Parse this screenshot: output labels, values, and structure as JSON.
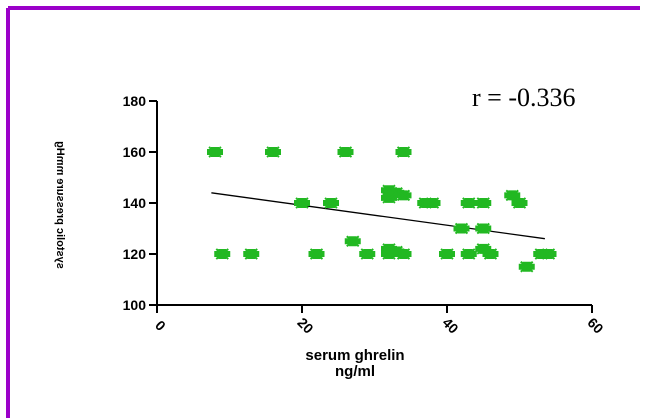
{
  "colors": {
    "border": "#9b00c9",
    "point": "#22b822",
    "axis": "#000000",
    "background": "#ffffff"
  },
  "chart_data": {
    "type": "scatter",
    "title": "",
    "xlabel": [
      "serum ghrelin",
      "ng/ml"
    ],
    "ylabel": "systolic pressure mmHg",
    "annotation": "r = -0.336",
    "xlim": [
      0,
      60
    ],
    "ylim": [
      100,
      180
    ],
    "x_ticks": [
      0,
      20,
      40,
      60
    ],
    "y_ticks": [
      100,
      120,
      140,
      160,
      180
    ],
    "grid": false,
    "legend": "none",
    "points": [
      {
        "x": 8,
        "y": 160
      },
      {
        "x": 16,
        "y": 160
      },
      {
        "x": 26,
        "y": 160
      },
      {
        "x": 34,
        "y": 160
      },
      {
        "x": 9,
        "y": 120
      },
      {
        "x": 13,
        "y": 120
      },
      {
        "x": 22,
        "y": 120
      },
      {
        "x": 29,
        "y": 120
      },
      {
        "x": 20,
        "y": 140
      },
      {
        "x": 24,
        "y": 140
      },
      {
        "x": 27,
        "y": 125
      },
      {
        "x": 32,
        "y": 145
      },
      {
        "x": 32,
        "y": 142
      },
      {
        "x": 33,
        "y": 144
      },
      {
        "x": 34,
        "y": 143
      },
      {
        "x": 32,
        "y": 122
      },
      {
        "x": 32,
        "y": 120
      },
      {
        "x": 33,
        "y": 121
      },
      {
        "x": 34,
        "y": 120
      },
      {
        "x": 37,
        "y": 140
      },
      {
        "x": 38,
        "y": 140
      },
      {
        "x": 40,
        "y": 120
      },
      {
        "x": 42,
        "y": 130
      },
      {
        "x": 43,
        "y": 140
      },
      {
        "x": 45,
        "y": 140
      },
      {
        "x": 43,
        "y": 120
      },
      {
        "x": 45,
        "y": 122
      },
      {
        "x": 45,
        "y": 130
      },
      {
        "x": 46,
        "y": 120
      },
      {
        "x": 49,
        "y": 143
      },
      {
        "x": 50,
        "y": 140
      },
      {
        "x": 51,
        "y": 115
      },
      {
        "x": 53,
        "y": 120
      },
      {
        "x": 54,
        "y": 120
      }
    ],
    "trendline": {
      "x": [
        7.5,
        53.5
      ],
      "y": [
        144,
        126
      ]
    }
  }
}
